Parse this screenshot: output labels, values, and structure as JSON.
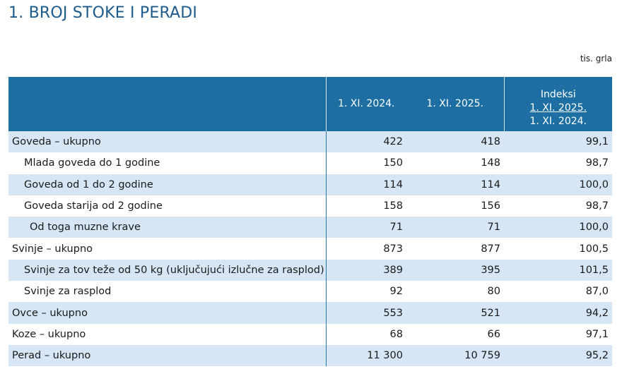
{
  "title": "1. BROJ STOKE I PERADI",
  "unit": "tis. grla",
  "table": {
    "headers": {
      "col1": "1. XI. 2024.",
      "col2": "1. XI. 2025.",
      "index_title": "Indeksi",
      "index_numerator": "1. XI. 2025.",
      "index_denominator": "1. XI. 2024."
    },
    "rows": [
      {
        "label": "Goveda – ukupno",
        "v2024": "422",
        "v2025": "418",
        "index": "99,1",
        "level": 0
      },
      {
        "label": "Mlada goveda do 1 godine",
        "v2024": "150",
        "v2025": "148",
        "index": "98,7",
        "level": 1
      },
      {
        "label": "Goveda od 1 do 2 godine",
        "v2024": "114",
        "v2025": "114",
        "index": "100,0",
        "level": 1
      },
      {
        "label": "Goveda starija od 2 godine",
        "v2024": "158",
        "v2025": "156",
        "index": "98,7",
        "level": 1
      },
      {
        "label": "Od toga muzne krave",
        "v2024": "71",
        "v2025": "71",
        "index": "100,0",
        "level": 2
      },
      {
        "label": "Svinje – ukupno",
        "v2024": "873",
        "v2025": "877",
        "index": "100,5",
        "level": 0
      },
      {
        "label": "Svinje za tov teže od 50 kg (uključujući izlučne za rasplod)",
        "v2024": "389",
        "v2025": "395",
        "index": "101,5",
        "level": 1
      },
      {
        "label": "Svinje za rasplod",
        "v2024": "92",
        "v2025": "80",
        "index": "87,0",
        "level": 1
      },
      {
        "label": "Ovce – ukupno",
        "v2024": "553",
        "v2025": "521",
        "index": "94,2",
        "level": 0
      },
      {
        "label": "Koze – ukupno",
        "v2024": "68",
        "v2025": "66",
        "index": "97,1",
        "level": 0
      },
      {
        "label": "Perad – ukupno",
        "v2024": "11 300",
        "v2025": "10 759",
        "index": "95,2",
        "level": 0
      }
    ]
  },
  "colors": {
    "title": "#1c5b8c",
    "header_bg": "#1d6fa3",
    "stripe_bg": "#d6e6f4"
  }
}
